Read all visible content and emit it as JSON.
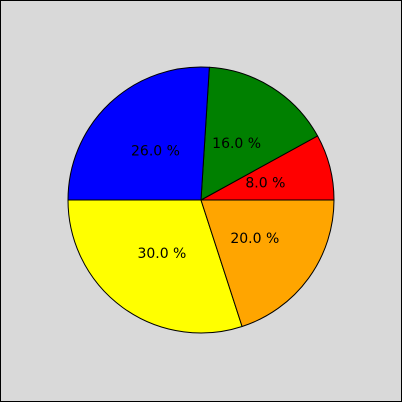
{
  "chart_data": {
    "type": "pie",
    "title": "",
    "slices": [
      {
        "label": "8.0 %",
        "value": 8,
        "color": "#ff0000"
      },
      {
        "label": "16.0 %",
        "value": 16,
        "color": "#008000"
      },
      {
        "label": "26.0 %",
        "value": 26,
        "color": "#0000ff"
      },
      {
        "label": "30.0 %",
        "value": 30,
        "color": "#ffff00"
      },
      {
        "label": "20.0 %",
        "value": 20,
        "color": "#ffa500"
      }
    ],
    "start_angle_deg": 0,
    "direction": "counterclockwise",
    "background": "#d9d9d9"
  }
}
